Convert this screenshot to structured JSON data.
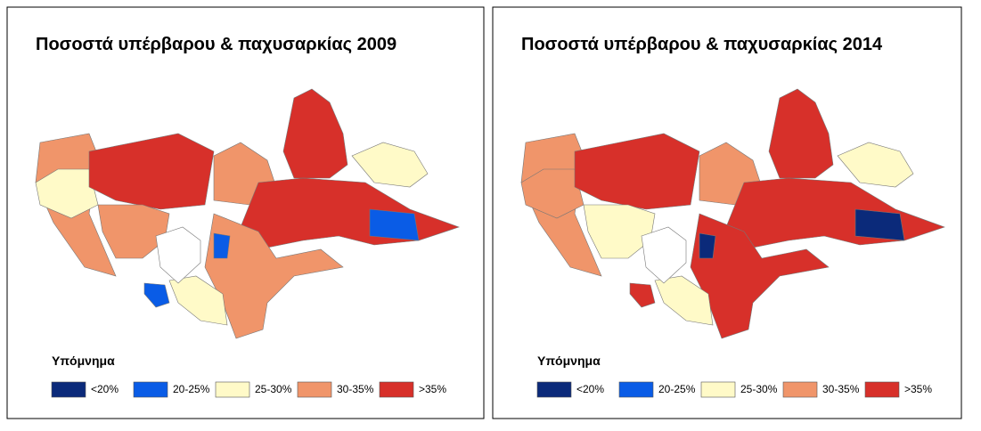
{
  "maps": [
    {
      "title": "Ποσοστά υπέρβαρου & παχυσαρκίας 2009",
      "legend_title": "Υπόμνημα",
      "legend": [
        {
          "label": "<20%",
          "color": "#0b2a7a"
        },
        {
          "label": "20-25%",
          "color": "#0a5ce6"
        },
        {
          "label": "25-30%",
          "color": "#fffac8"
        },
        {
          "label": "30-35%",
          "color": "#f0956a"
        },
        {
          "label": ">35%",
          "color": "#d7302a"
        }
      ]
    },
    {
      "title": "Ποσοστά υπέρβαρου & παχυσαρκίας 2014",
      "legend_title": "Υπόμνημα",
      "legend": [
        {
          "label": "<20%",
          "color": "#0b2a7a"
        },
        {
          "label": "20-25%",
          "color": "#0a5ce6"
        },
        {
          "label": "25-30%",
          "color": "#fffac8"
        },
        {
          "label": "30-35%",
          "color": "#f0956a"
        },
        {
          "label": ">35%",
          "color": "#d7302a"
        }
      ]
    }
  ]
}
